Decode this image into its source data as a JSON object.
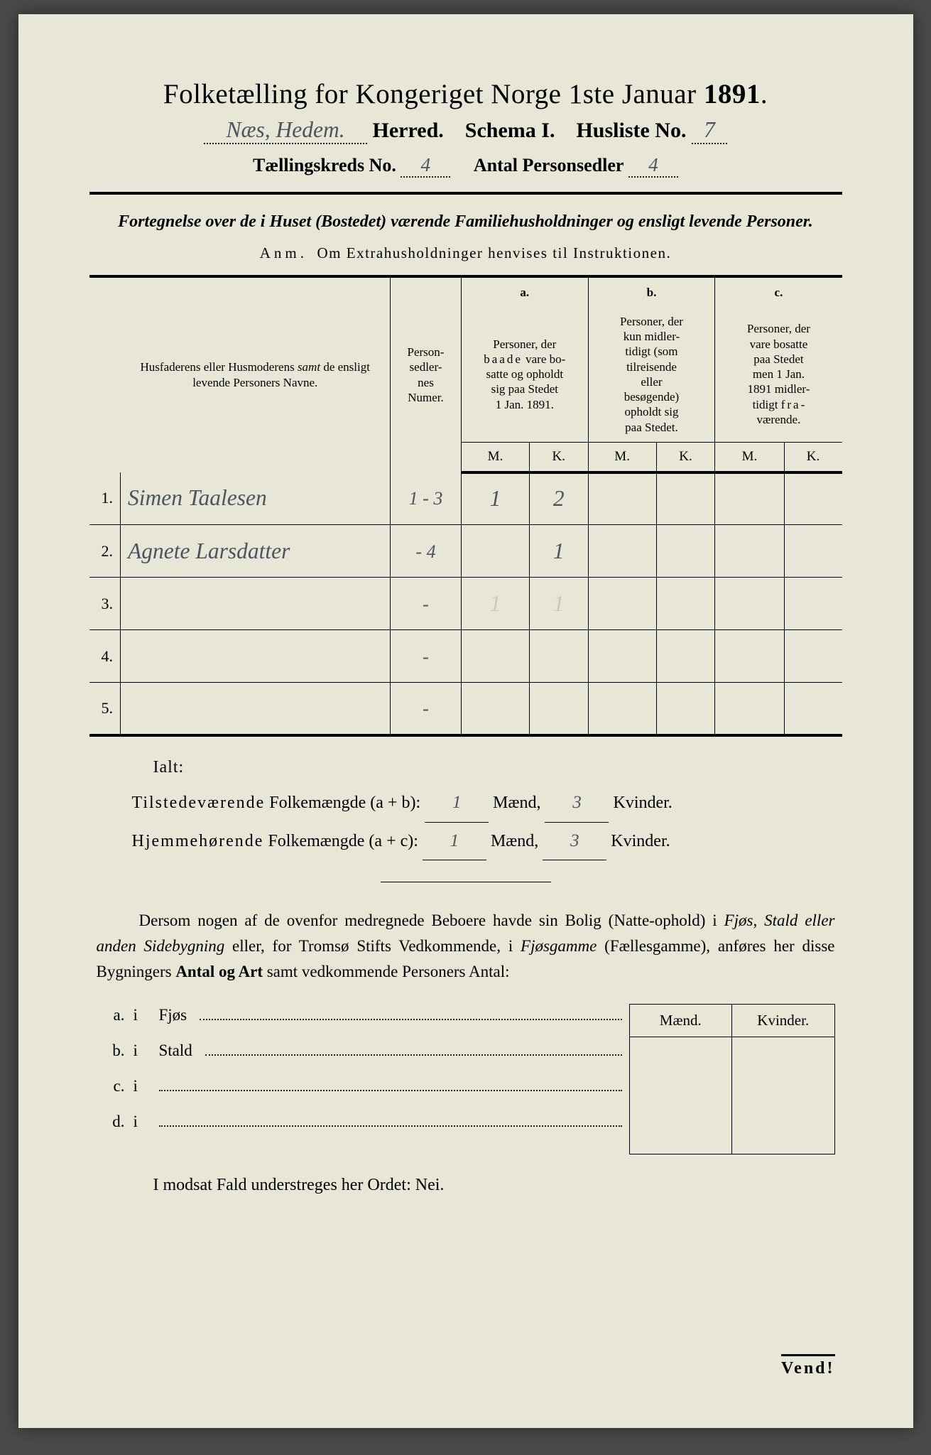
{
  "background_color": "#e8e6d6",
  "ink_color": "#000000",
  "handwriting_color": "#4a5560",
  "header": {
    "title_pre": "Folketælling for Kongeriget Norge 1ste Januar",
    "year": "1891",
    "herred_hand": "Næs, Hedem.",
    "herred_label": "Herred.",
    "schema_label": "Schema I.",
    "husliste_label": "Husliste No.",
    "husliste_no": "7",
    "kreds_label": "Tællingskreds No.",
    "kreds_no": "4",
    "sedler_label": "Antal Personsedler",
    "sedler_no": "4"
  },
  "subtitle": {
    "line": "Fortegnelse over de i Huset (Bostedet) værende Familiehusholdninger og ensligt levende Personer.",
    "anm_lead": "Anm.",
    "anm_rest": "Om Extrahusholdninger henvises til Instruktionen."
  },
  "table": {
    "col_names_html": "Husfaderens eller Husmoderens <span class='em'>samt</span> de ensligt levende Personers Navne.",
    "col_numer": "Person-\nsedler-\nnes\nNumer.",
    "a": "a.",
    "a_desc_html": "Personer, der <span class='sp'>baade</span> vare bosatte og opholdt sig paa Stedet 1 Jan. 1891.",
    "b": "b.",
    "b_desc_html": "Personer, der <span class='sp'>kun</span> midlertidigt (som tilreisende eller besøgende) opholdt sig paa Stedet.",
    "c": "c.",
    "c_desc_html": "Personer, der vare bosatte paa Stedet men 1 Jan. 1891 midlertidigt <span class='sp'>fra</span>værende.",
    "M": "M.",
    "K": "K.",
    "rows": [
      {
        "n": "1.",
        "name": "Simen Taalesen",
        "numer": "1 - 3",
        "aM": "1",
        "aK": "2",
        "bM": "",
        "bK": "",
        "cM": "",
        "cK": ""
      },
      {
        "n": "2.",
        "name": "Agnete Larsdatter",
        "numer": "- 4",
        "aM": "",
        "aK": "1",
        "bM": "",
        "bK": "",
        "cM": "",
        "cK": ""
      },
      {
        "n": "3.",
        "name": "",
        "numer": "-",
        "aM": "",
        "aK": "",
        "bM": "",
        "bK": "",
        "cM": "",
        "cK": "",
        "faint_aM": "1",
        "faint_aK": "1"
      },
      {
        "n": "4.",
        "name": "",
        "numer": "-",
        "aM": "",
        "aK": "",
        "bM": "",
        "bK": "",
        "cM": "",
        "cK": ""
      },
      {
        "n": "5.",
        "name": "",
        "numer": "-",
        "aM": "",
        "aK": "",
        "bM": "",
        "bK": "",
        "cM": "",
        "cK": ""
      }
    ]
  },
  "totals": {
    "ialt": "Ialt:",
    "line1_label": "Tilstedeværende",
    "line1_term": "Folkemængde (a + b):",
    "line2_label": "Hjemmehørende",
    "line2_term": "Folkemængde (a + c):",
    "maend": "Mænd,",
    "kvinder": "Kvinder.",
    "l1_m": "1",
    "l1_k": "3",
    "l2_m": "1",
    "l2_k": "3"
  },
  "para": "Dersom nogen af de ovenfor medregnede Beboere havde sin Bolig (Natte-ophold) i Fjøs, Stald eller anden Sidebygning eller, for Tromsø Stifts Vedkommende, i Fjøsgamme (Fællesgamme), anføres her disse Bygningers Antal og Art samt vedkommende Personers Antal:",
  "mk": {
    "m": "Mænd.",
    "k": "Kvinder."
  },
  "abcd": [
    {
      "tag": "a.",
      "word": "Fjøs"
    },
    {
      "tag": "b.",
      "word": "Stald"
    },
    {
      "tag": "c.",
      "word": ""
    },
    {
      "tag": "d.",
      "word": ""
    }
  ],
  "final_line": "I modsat Fald understreges her Ordet: Nei.",
  "vend": "Vend!"
}
